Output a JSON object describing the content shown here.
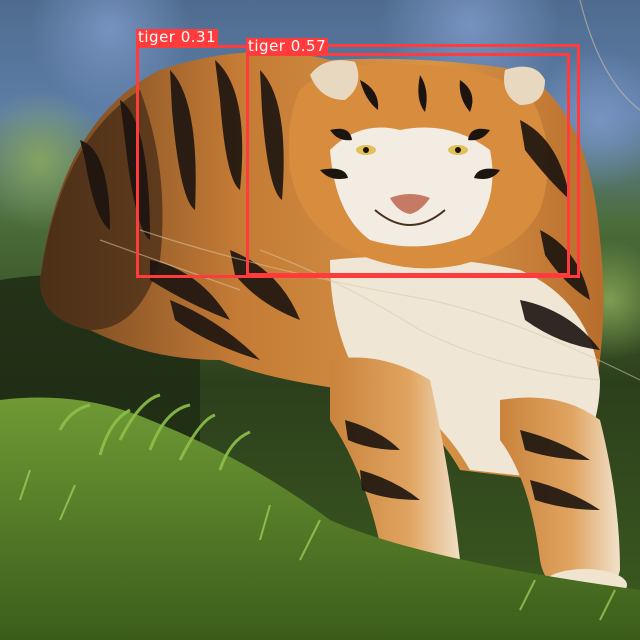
{
  "detections": [
    {
      "class_label": "tiger",
      "confidence": "0.31",
      "text": "tiger 0.31",
      "color": "#ff3b3b"
    },
    {
      "class_label": "tiger",
      "confidence": "0.57",
      "text": "tiger 0.57",
      "color": "#ff3b3b"
    }
  ],
  "scene": {
    "subject": "tiger-photo",
    "colors": {
      "sky": "#5d7fb0",
      "foliage": "#3f6b2a",
      "grass": "#5f8f2c",
      "tiger_orange": "#c97a33",
      "stripe": "#1c140f",
      "fur_white": "#f3ede3"
    }
  }
}
